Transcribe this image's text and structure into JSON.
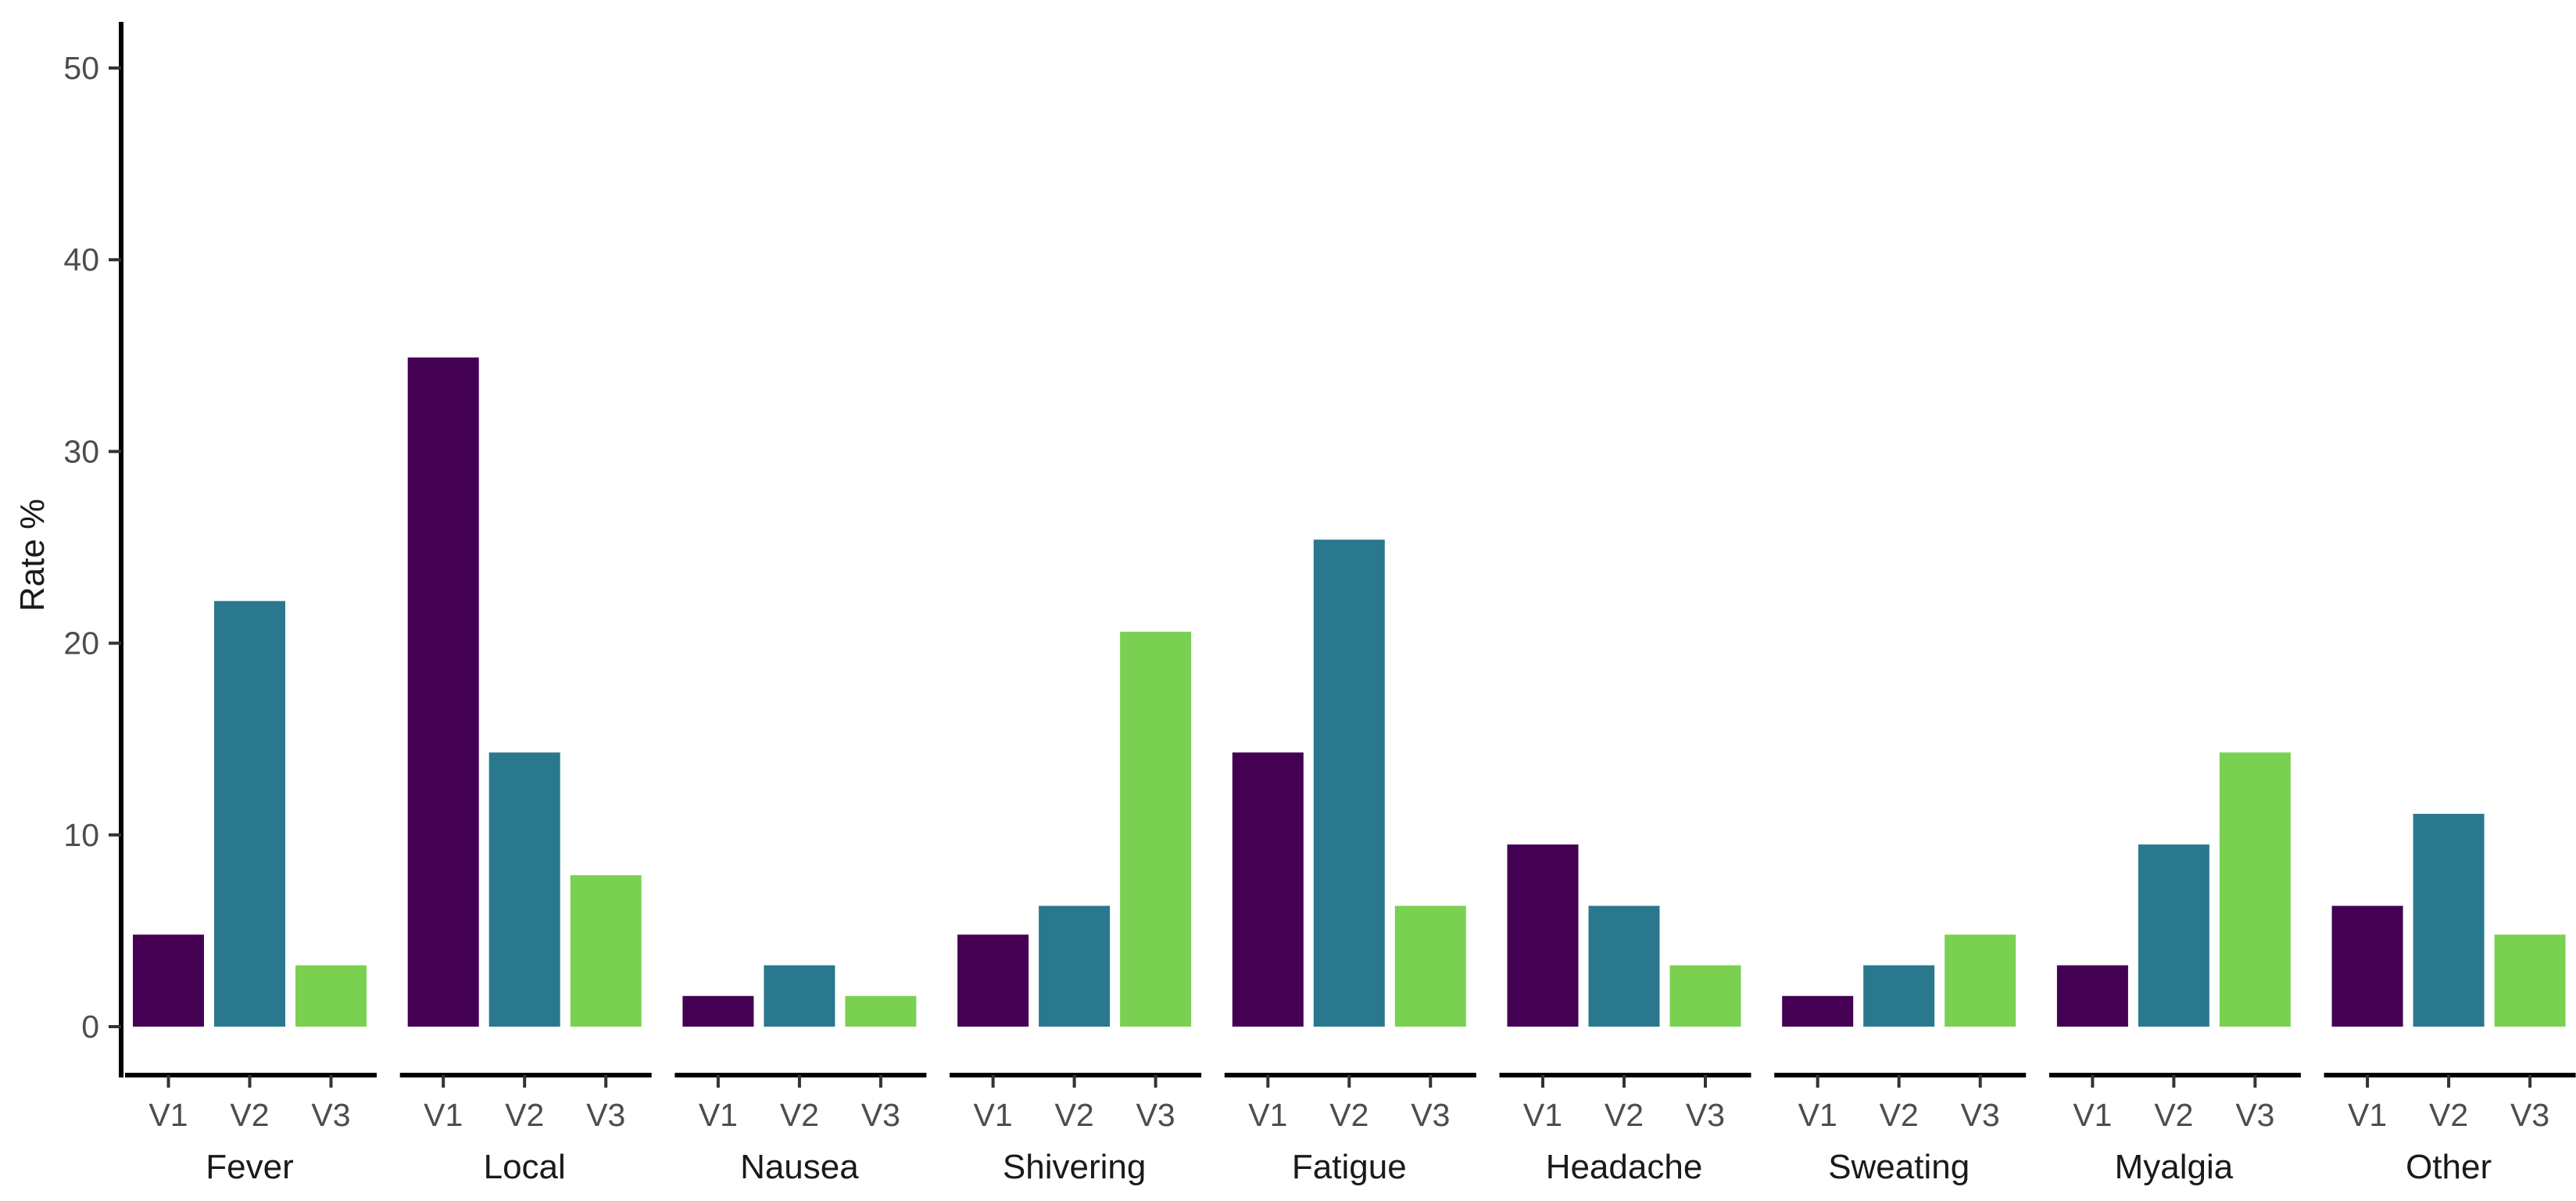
{
  "chart_data": {
    "type": "bar",
    "ylabel": "Rate %",
    "xlabel": "",
    "ylim": [
      0,
      50
    ],
    "yticks": [
      0,
      10,
      20,
      30,
      40,
      50
    ],
    "grid": false,
    "legend": "none",
    "subgroups": [
      "V1",
      "V2",
      "V3"
    ],
    "colors": {
      "V1": "#440154",
      "V2": "#2A788E",
      "V3": "#7AD151"
    },
    "categories": [
      "Fever",
      "Local",
      "Nausea",
      "Shivering",
      "Fatigue",
      "Headache",
      "Sweating",
      "Myalgia",
      "Other"
    ],
    "series": [
      {
        "name": "V1",
        "values": [
          4.8,
          34.9,
          1.6,
          4.8,
          14.3,
          9.5,
          1.6,
          3.2,
          6.3
        ]
      },
      {
        "name": "V2",
        "values": [
          22.2,
          14.3,
          3.2,
          6.3,
          25.4,
          6.3,
          3.2,
          9.5,
          11.1
        ]
      },
      {
        "name": "V3",
        "values": [
          3.2,
          7.9,
          1.6,
          20.6,
          6.3,
          3.2,
          4.8,
          14.3,
          4.8
        ]
      }
    ]
  }
}
